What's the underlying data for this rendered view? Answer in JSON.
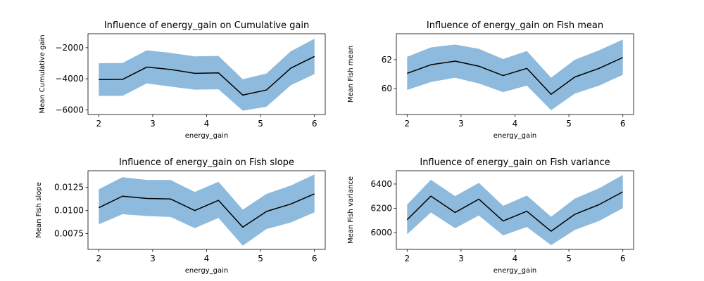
{
  "chart_data": [
    {
      "type": "line",
      "title": "Influence of energy_gain on Cumulative gain",
      "xlabel": "energy_gain",
      "ylabel": "Mean Cumulative gain",
      "xlim": [
        1.8,
        6.2
      ],
      "ylim": [
        -6300,
        -1100
      ],
      "xticks": [
        2,
        3,
        4,
        5,
        6
      ],
      "yticks": [
        -6000,
        -4000,
        -2000
      ],
      "x": [
        2.0,
        2.44,
        2.89,
        3.33,
        3.78,
        4.22,
        4.67,
        5.11,
        5.56,
        6.0
      ],
      "mean": [
        -4050,
        -4040,
        -3250,
        -3400,
        -3650,
        -3620,
        -5050,
        -4720,
        -3320,
        -2560
      ],
      "lower": [
        -5100,
        -5100,
        -4300,
        -4500,
        -4700,
        -4680,
        -6050,
        -5800,
        -4420,
        -3700
      ],
      "upper": [
        -3000,
        -2980,
        -2170,
        -2330,
        -2560,
        -2530,
        -4030,
        -3660,
        -2230,
        -1420
      ],
      "line_color": "#000000",
      "band_color": "#8ebbdd"
    },
    {
      "type": "line",
      "title": "Influence of energy_gain on Fish mean",
      "xlabel": "energy_gain",
      "ylabel": "Mean Fish mean",
      "xlim": [
        1.8,
        6.2
      ],
      "ylim": [
        58.2,
        63.8
      ],
      "xticks": [
        2,
        3,
        4,
        5,
        6
      ],
      "yticks": [
        60,
        62
      ],
      "x": [
        2.0,
        2.44,
        2.89,
        3.33,
        3.78,
        4.22,
        4.67,
        5.11,
        5.56,
        6.0
      ],
      "mean": [
        61.05,
        61.65,
        61.9,
        61.55,
        60.9,
        61.4,
        59.6,
        60.8,
        61.4,
        62.15
      ],
      "lower": [
        59.9,
        60.45,
        60.75,
        60.35,
        59.75,
        60.2,
        58.5,
        59.65,
        60.2,
        60.95
      ],
      "upper": [
        62.2,
        62.85,
        63.05,
        62.75,
        62.05,
        62.6,
        60.75,
        62.0,
        62.65,
        63.4
      ],
      "line_color": "#000000",
      "band_color": "#8ebbdd"
    },
    {
      "type": "line",
      "title": "Influence of energy_gain on Fish slope",
      "xlabel": "energy_gain",
      "ylabel": "Mean Fish slope",
      "xlim": [
        1.8,
        6.2
      ],
      "ylim": [
        0.0058,
        0.0143
      ],
      "xticks": [
        2,
        3,
        4,
        5,
        6
      ],
      "yticks": [
        0.0075,
        0.01,
        0.0125
      ],
      "ytick_labels": [
        "0.0075",
        "0.0100",
        "0.0125"
      ],
      "x": [
        2.0,
        2.44,
        2.89,
        3.33,
        3.78,
        4.22,
        4.67,
        5.11,
        5.56,
        6.0
      ],
      "mean": [
        0.0103,
        0.01155,
        0.0113,
        0.01125,
        0.01,
        0.0111,
        0.0082,
        0.0099,
        0.0107,
        0.0118
      ],
      "lower": [
        0.0085,
        0.0096,
        0.0094,
        0.0093,
        0.0081,
        0.0092,
        0.0062,
        0.008,
        0.0087,
        0.0098
      ],
      "upper": [
        0.0123,
        0.0136,
        0.0133,
        0.0133,
        0.012,
        0.0131,
        0.0101,
        0.0118,
        0.0127,
        0.0139
      ],
      "line_color": "#000000",
      "band_color": "#8ebbdd"
    },
    {
      "type": "line",
      "title": "Influence of energy_gain on Fish variance",
      "xlabel": "energy_gain",
      "ylabel": "Mean Fish variance",
      "xlim": [
        1.8,
        6.2
      ],
      "ylim": [
        5860,
        6510
      ],
      "xticks": [
        2,
        3,
        4,
        5,
        6
      ],
      "yticks": [
        6000,
        6200,
        6400
      ],
      "x": [
        2.0,
        2.44,
        2.89,
        3.33,
        3.78,
        4.22,
        4.67,
        5.11,
        5.56,
        6.0
      ],
      "mean": [
        6105,
        6300,
        6165,
        6275,
        6095,
        6175,
        6010,
        6150,
        6230,
        6335
      ],
      "lower": [
        5985,
        6165,
        6035,
        6140,
        5975,
        6045,
        5895,
        6020,
        6095,
        6200
      ],
      "upper": [
        6230,
        6435,
        6300,
        6410,
        6220,
        6305,
        6130,
        6280,
        6365,
        6475
      ],
      "line_color": "#000000",
      "band_color": "#8ebbdd"
    }
  ]
}
